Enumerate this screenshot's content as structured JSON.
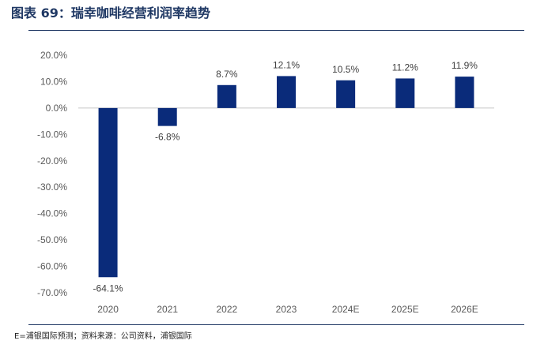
{
  "figure": {
    "title": "图表 69：瑞幸咖啡经营利润率趋势",
    "source_note": "E=浦银国际预测；资料来源：公司资料，浦银国际"
  },
  "colors": {
    "bar": "#0a2b7a",
    "axis": "#c8c8c8",
    "text": "#595959",
    "title": "#1f3864"
  },
  "chart_data": {
    "type": "bar",
    "categories": [
      "2020",
      "2021",
      "2022",
      "2023",
      "2024E",
      "2025E",
      "2026E"
    ],
    "values": [
      -64.1,
      -6.8,
      8.7,
      12.1,
      10.5,
      11.2,
      11.9
    ],
    "data_labels": [
      "-64.1%",
      "-6.8%",
      "8.7%",
      "12.1%",
      "10.5%",
      "11.2%",
      "11.9%"
    ],
    "ylim": [
      -70,
      20
    ],
    "yticks": [
      20,
      10,
      0,
      -10,
      -20,
      -30,
      -40,
      -50,
      -60,
      -70
    ],
    "ytick_labels": [
      "20.0%",
      "10.0%",
      "0.0%",
      "-10.0%",
      "-20.0%",
      "-30.0%",
      "-40.0%",
      "-50.0%",
      "-60.0%",
      "-70.0%"
    ],
    "grid": false,
    "legend": "none",
    "title": "",
    "xlabel": "",
    "ylabel": ""
  }
}
